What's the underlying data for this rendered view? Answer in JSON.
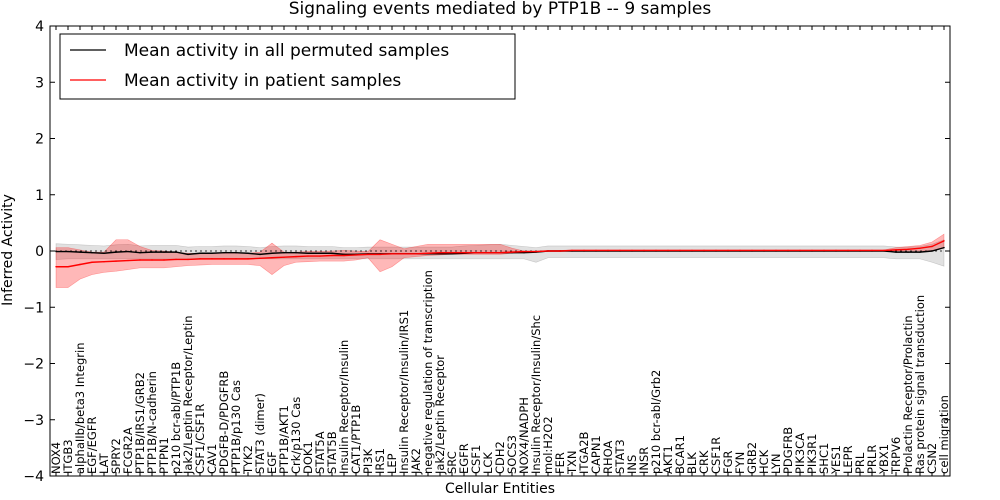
{
  "chart_data": {
    "type": "line",
    "title": "Signaling events mediated by PTP1B -- 9 samples",
    "xlabel": "Cellular Entities",
    "ylabel": "Inferred Activity",
    "ylim": [
      -4,
      4
    ],
    "yticks": [
      4,
      3,
      2,
      1,
      0,
      -1,
      -2,
      -3,
      -4
    ],
    "ytick_labels": [
      "4",
      "3",
      "2",
      "1",
      "0",
      "−1",
      "−2",
      "−3",
      "−4"
    ],
    "legend_position": "top-left",
    "categories": [
      "NOX4",
      "ITGB3",
      "alphaIIb/beta3 Integrin",
      "EGF/EGFR",
      "LAT",
      "SPRY2",
      "FCGR2A",
      "PTP1B/IRS1/GRB2",
      "PTP1B/N-cadherin",
      "PTPN1",
      "p210 bcr-abl/PTP1B",
      "Jak2/Leptin Receptor/Leptin",
      "CSF1/CSF1R",
      "CAV1",
      "PDGFB-D/PDGFRB",
      "PTP1B/p130 Cas",
      "TYK2",
      "STAT3 (dimer)",
      "EGF",
      "PTP1B/AKT1",
      "Crk/p130 Cas",
      "DOK1",
      "STAT5A",
      "STAT5B",
      "Insulin Receptor/Insulin",
      "CAT1/PTP1B",
      "PI3K",
      "IRS1",
      "LEP",
      "Insulin Receptor/Insulin/IRS1",
      "JAK2",
      "negative regulation of transcription",
      "Jak2/Leptin Receptor",
      "SRC",
      "EGFR",
      "CSF1",
      "LCK",
      "CDH2",
      "SOCS3",
      "NOX4/NADPH",
      "Insulin Receptor/Insulin/Shc",
      "mol:H2O2",
      "FER",
      "TXN",
      "ITGA2B",
      "CAPN1",
      "RHOA",
      "STAT3",
      "INS",
      "INSR",
      "p210 bcr-abl/Grb2",
      "AKT1",
      "BCAR1",
      "BLK",
      "CRK",
      "CSF1R",
      "FGR",
      "FYN",
      "GRB2",
      "HCK",
      "LYN",
      "PDGFRB",
      "PIK3CA",
      "PIK3R1",
      "SHC1",
      "YES1",
      "LEPR",
      "PRL",
      "PRLR",
      "YBX1",
      "TRPV6",
      "Prolactin Receptor/Prolactin",
      "Ras protein signal transduction",
      "CSN2",
      "cell migration"
    ],
    "series": [
      {
        "name": "Mean activity in all permuted samples",
        "color": "#000000",
        "values": [
          -0.01,
          -0.01,
          -0.02,
          -0.03,
          -0.04,
          -0.02,
          -0.01,
          -0.03,
          -0.02,
          -0.02,
          -0.02,
          -0.06,
          -0.04,
          -0.04,
          -0.03,
          -0.03,
          -0.04,
          -0.06,
          -0.04,
          -0.03,
          -0.03,
          -0.04,
          -0.04,
          -0.04,
          -0.06,
          -0.06,
          -0.05,
          -0.05,
          -0.05,
          -0.05,
          -0.05,
          -0.05,
          -0.05,
          -0.05,
          -0.04,
          -0.03,
          -0.03,
          -0.03,
          -0.03,
          -0.03,
          -0.02,
          0.0,
          0.0,
          0.0,
          0.0,
          0.0,
          0.0,
          0.0,
          0.0,
          0.0,
          0.0,
          0.0,
          0.0,
          0.0,
          0.0,
          0.0,
          0.0,
          0.0,
          0.0,
          0.0,
          0.0,
          0.0,
          0.0,
          0.0,
          0.0,
          0.0,
          0.0,
          0.0,
          0.0,
          0.0,
          -0.02,
          -0.02,
          -0.02,
          0.0,
          0.06
        ],
        "lower": [
          -0.15,
          -0.14,
          -0.14,
          -0.14,
          -0.14,
          -0.14,
          -0.14,
          -0.14,
          -0.14,
          -0.14,
          -0.14,
          -0.14,
          -0.14,
          -0.14,
          -0.14,
          -0.14,
          -0.14,
          -0.14,
          -0.14,
          -0.14,
          -0.14,
          -0.14,
          -0.14,
          -0.14,
          -0.14,
          -0.14,
          -0.14,
          -0.14,
          -0.14,
          -0.14,
          -0.14,
          -0.14,
          -0.14,
          -0.14,
          -0.14,
          -0.14,
          -0.14,
          -0.14,
          -0.14,
          -0.14,
          -0.2,
          -0.12,
          -0.12,
          -0.12,
          -0.12,
          -0.12,
          -0.12,
          -0.12,
          -0.12,
          -0.12,
          -0.12,
          -0.12,
          -0.12,
          -0.12,
          -0.12,
          -0.12,
          -0.12,
          -0.12,
          -0.12,
          -0.12,
          -0.12,
          -0.12,
          -0.12,
          -0.12,
          -0.12,
          -0.12,
          -0.12,
          -0.12,
          -0.12,
          -0.12,
          -0.14,
          -0.14,
          -0.14,
          -0.2,
          -0.27
        ],
        "upper": [
          0.13,
          0.12,
          0.11,
          0.1,
          0.09,
          0.11,
          0.12,
          0.09,
          0.1,
          0.1,
          0.1,
          0.07,
          0.08,
          0.08,
          0.09,
          0.09,
          0.08,
          0.06,
          0.08,
          0.09,
          0.09,
          0.08,
          0.08,
          0.08,
          0.06,
          0.06,
          0.07,
          0.07,
          0.07,
          0.07,
          0.07,
          0.07,
          0.07,
          0.07,
          0.09,
          0.1,
          0.11,
          0.12,
          0.1,
          0.08,
          0.06,
          0.09,
          0.09,
          0.09,
          0.09,
          0.09,
          0.09,
          0.09,
          0.09,
          0.09,
          0.09,
          0.09,
          0.09,
          0.09,
          0.09,
          0.09,
          0.09,
          0.09,
          0.09,
          0.09,
          0.09,
          0.09,
          0.09,
          0.09,
          0.09,
          0.09,
          0.09,
          0.09,
          0.09,
          0.09,
          0.07,
          0.07,
          0.08,
          0.12,
          0.2
        ]
      },
      {
        "name": "Mean activity in patient samples",
        "color": "#ff0000",
        "values": [
          -0.28,
          -0.28,
          -0.24,
          -0.2,
          -0.19,
          -0.18,
          -0.17,
          -0.16,
          -0.16,
          -0.16,
          -0.15,
          -0.15,
          -0.14,
          -0.14,
          -0.14,
          -0.14,
          -0.14,
          -0.13,
          -0.12,
          -0.11,
          -0.1,
          -0.09,
          -0.09,
          -0.08,
          -0.08,
          -0.07,
          -0.06,
          -0.06,
          -0.05,
          -0.05,
          -0.05,
          -0.04,
          -0.03,
          -0.03,
          -0.03,
          -0.03,
          -0.03,
          -0.03,
          -0.02,
          -0.01,
          -0.01,
          0.0,
          0.0,
          0.01,
          0.01,
          0.01,
          0.01,
          0.01,
          0.01,
          0.01,
          0.01,
          0.01,
          0.01,
          0.01,
          0.01,
          0.01,
          0.01,
          0.01,
          0.01,
          0.01,
          0.01,
          0.01,
          0.01,
          0.01,
          0.01,
          0.01,
          0.01,
          0.01,
          0.01,
          0.01,
          0.02,
          0.03,
          0.05,
          0.08,
          0.18
        ],
        "lower": [
          -0.65,
          -0.65,
          -0.5,
          -0.42,
          -0.38,
          -0.36,
          -0.33,
          -0.3,
          -0.3,
          -0.3,
          -0.28,
          -0.26,
          -0.25,
          -0.24,
          -0.24,
          -0.24,
          -0.24,
          -0.26,
          -0.42,
          -0.26,
          -0.2,
          -0.19,
          -0.18,
          -0.18,
          -0.18,
          -0.16,
          -0.12,
          -0.37,
          -0.28,
          -0.12,
          -0.1,
          -0.08,
          -0.07,
          -0.06,
          -0.06,
          -0.06,
          -0.06,
          -0.06,
          -0.04,
          -0.02,
          -0.02,
          -0.01,
          -0.01,
          0.0,
          0.0,
          0.0,
          0.0,
          0.0,
          0.0,
          0.0,
          0.0,
          0.0,
          0.0,
          0.0,
          0.0,
          0.0,
          0.0,
          0.0,
          0.0,
          0.0,
          0.0,
          0.0,
          0.0,
          0.0,
          0.0,
          0.0,
          0.0,
          0.0,
          0.0,
          0.0,
          0.0,
          0.0,
          0.0,
          0.0,
          0.05
        ],
        "upper": [
          0.06,
          0.06,
          0.02,
          -0.02,
          -0.02,
          0.2,
          0.2,
          0.08,
          0.01,
          0.0,
          -0.02,
          -0.04,
          -0.04,
          -0.04,
          -0.04,
          -0.04,
          -0.04,
          -0.02,
          0.14,
          -0.02,
          -0.02,
          -0.01,
          -0.01,
          0.0,
          0.01,
          0.0,
          -0.01,
          0.2,
          0.12,
          0.04,
          0.08,
          0.12,
          0.12,
          0.12,
          0.12,
          0.12,
          0.12,
          0.12,
          0.05,
          0.0,
          0.0,
          0.01,
          0.01,
          0.02,
          0.02,
          0.02,
          0.02,
          0.02,
          0.02,
          0.02,
          0.02,
          0.02,
          0.02,
          0.02,
          0.02,
          0.02,
          0.02,
          0.02,
          0.02,
          0.02,
          0.02,
          0.02,
          0.02,
          0.02,
          0.02,
          0.02,
          0.02,
          0.02,
          0.02,
          0.02,
          0.06,
          0.08,
          0.1,
          0.16,
          0.3
        ]
      }
    ]
  }
}
